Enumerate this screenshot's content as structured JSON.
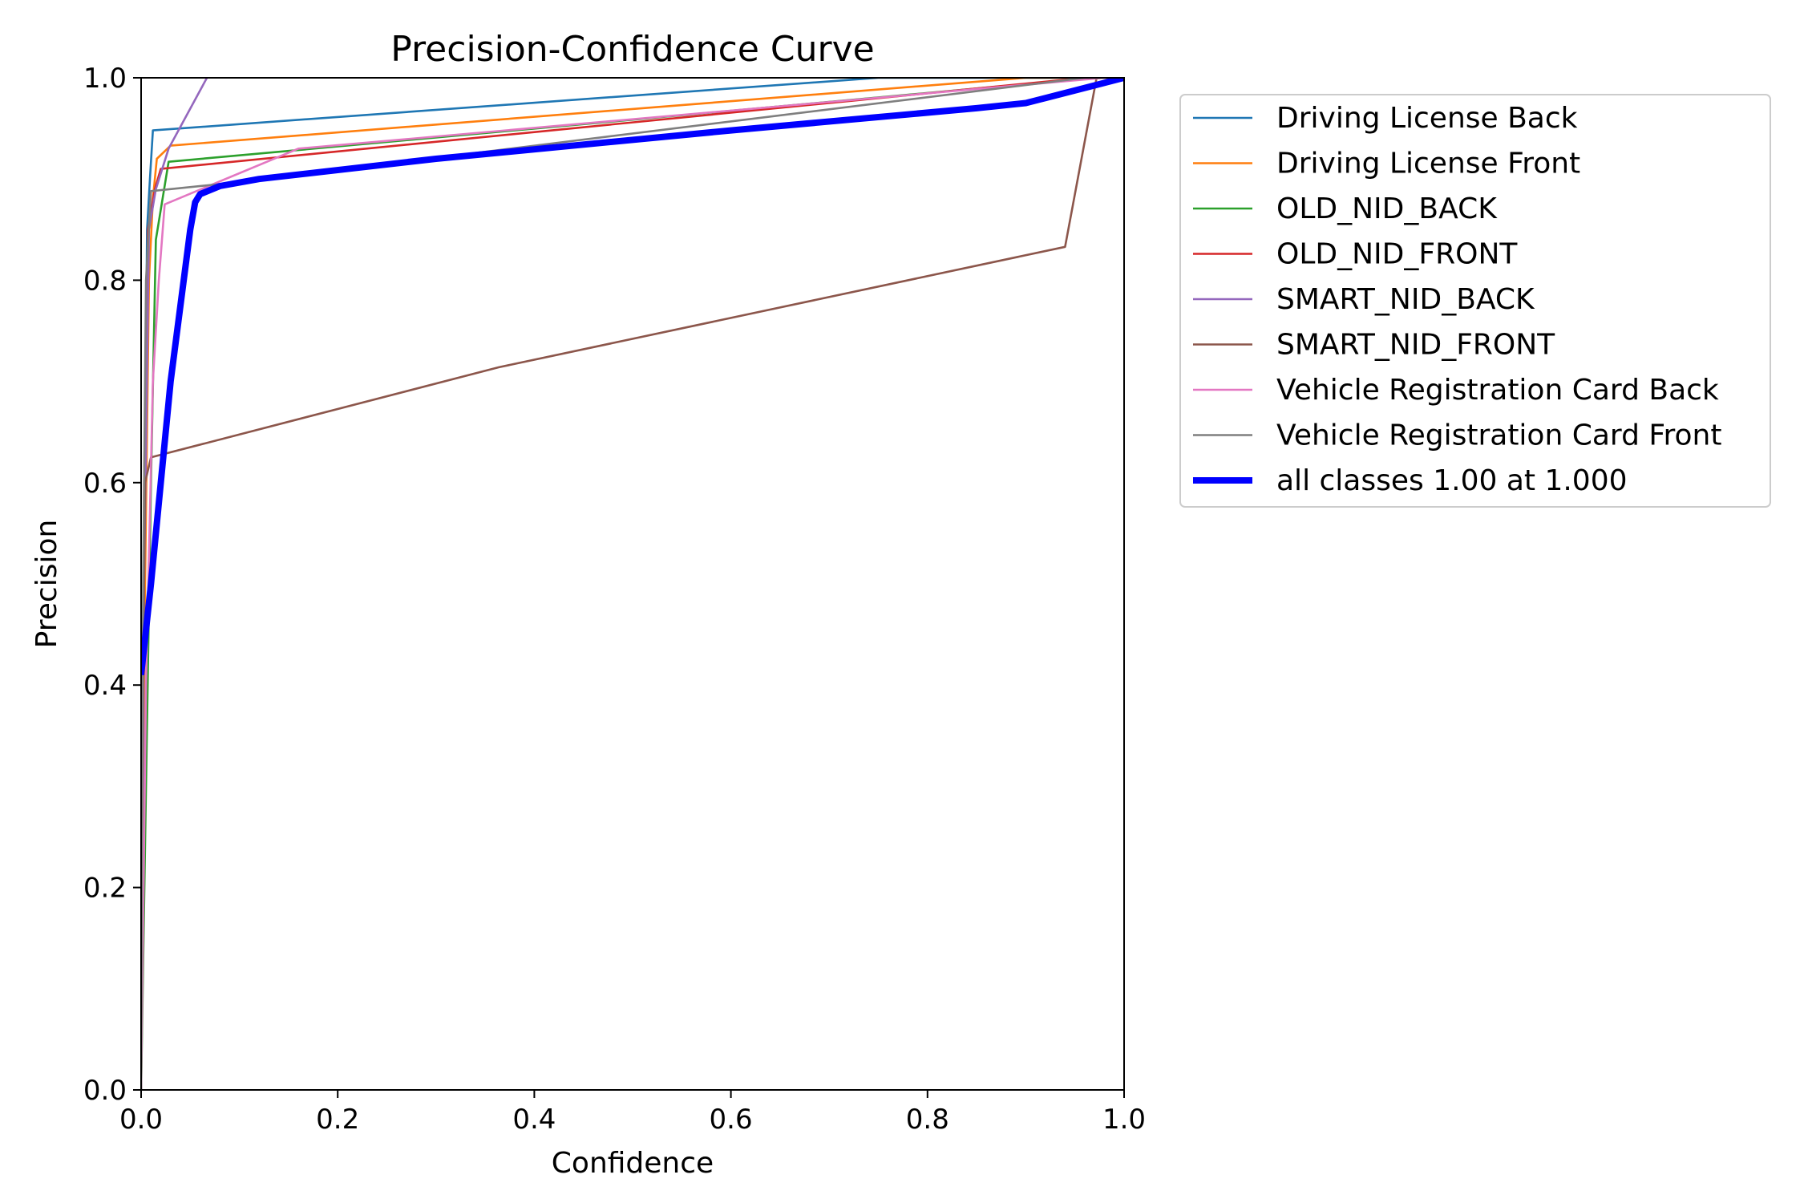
{
  "chart_data": {
    "type": "line",
    "title": "Precision-Confidence Curve",
    "xlabel": "Confidence",
    "ylabel": "Precision",
    "xlim": [
      0,
      1
    ],
    "ylim": [
      0,
      1
    ],
    "xticks": [
      "0.0",
      "0.2",
      "0.4",
      "0.6",
      "0.8",
      "1.0"
    ],
    "yticks": [
      "0.0",
      "0.2",
      "0.4",
      "0.6",
      "0.8",
      "1.0"
    ],
    "grid": false,
    "legend_position": "outside-top-right",
    "series": [
      {
        "name": "Driving License Back",
        "color": "#1f77b4",
        "width": "thin",
        "points": [
          [
            0.0,
            0.0
          ],
          [
            0.003,
            0.5
          ],
          [
            0.006,
            0.85
          ],
          [
            0.009,
            0.9
          ],
          [
            0.012,
            0.948
          ],
          [
            0.75,
            1.0
          ],
          [
            1.0,
            1.0
          ]
        ]
      },
      {
        "name": "Driving License Front",
        "color": "#ff7f0e",
        "width": "thin",
        "points": [
          [
            0.0,
            0.0
          ],
          [
            0.004,
            0.5
          ],
          [
            0.008,
            0.8
          ],
          [
            0.012,
            0.88
          ],
          [
            0.016,
            0.92
          ],
          [
            0.03,
            0.933
          ],
          [
            0.9,
            1.0
          ],
          [
            1.0,
            1.0
          ]
        ]
      },
      {
        "name": "OLD_NID_BACK",
        "color": "#2ca02c",
        "width": "thin",
        "points": [
          [
            0.0,
            0.0
          ],
          [
            0.005,
            0.3
          ],
          [
            0.01,
            0.6
          ],
          [
            0.015,
            0.84
          ],
          [
            0.028,
            0.917
          ],
          [
            0.97,
            1.0
          ],
          [
            1.0,
            1.0
          ]
        ]
      },
      {
        "name": "OLD_NID_FRONT",
        "color": "#d62728",
        "width": "thin",
        "points": [
          [
            0.0,
            0.0
          ],
          [
            0.003,
            0.6
          ],
          [
            0.007,
            0.85
          ],
          [
            0.014,
            0.89
          ],
          [
            0.02,
            0.91
          ],
          [
            0.96,
            1.0
          ],
          [
            1.0,
            1.0
          ]
        ]
      },
      {
        "name": "SMART_NID_BACK",
        "color": "#9467bd",
        "width": "thin",
        "points": [
          [
            0.0,
            0.0
          ],
          [
            0.003,
            0.5
          ],
          [
            0.008,
            0.85
          ],
          [
            0.015,
            0.89
          ],
          [
            0.028,
            0.93
          ],
          [
            0.067,
            1.0
          ]
        ]
      },
      {
        "name": "SMART_NID_FRONT",
        "color": "#8c564b",
        "width": "thin",
        "points": [
          [
            0.0,
            0.0
          ],
          [
            0.002,
            0.4
          ],
          [
            0.004,
            0.6
          ],
          [
            0.01,
            0.625
          ],
          [
            0.364,
            0.714
          ],
          [
            0.94,
            0.833
          ],
          [
            0.972,
            1.0
          ],
          [
            1.0,
            1.0
          ]
        ]
      },
      {
        "name": "Vehicle Registration Card Back",
        "color": "#e377c2",
        "width": "thin",
        "points": [
          [
            0.0,
            0.0
          ],
          [
            0.005,
            0.4
          ],
          [
            0.012,
            0.7
          ],
          [
            0.018,
            0.8
          ],
          [
            0.024,
            0.875
          ],
          [
            0.16,
            0.93
          ],
          [
            0.98,
            1.0
          ],
          [
            1.0,
            1.0
          ]
        ]
      },
      {
        "name": "Vehicle Registration Card Front",
        "color": "#7f7f7f",
        "width": "thin",
        "points": [
          [
            0.0,
            0.0
          ],
          [
            0.002,
            0.5
          ],
          [
            0.005,
            0.8
          ],
          [
            0.01,
            0.888
          ],
          [
            0.1,
            0.897
          ],
          [
            0.96,
            1.0
          ],
          [
            1.0,
            1.0
          ]
        ]
      },
      {
        "name": "all classes 1.00 at 1.000",
        "color": "#0000ff",
        "width": "thick",
        "points": [
          [
            0.0,
            0.41
          ],
          [
            0.01,
            0.5
          ],
          [
            0.03,
            0.7
          ],
          [
            0.05,
            0.85
          ],
          [
            0.055,
            0.877
          ],
          [
            0.06,
            0.885
          ],
          [
            0.08,
            0.893
          ],
          [
            0.12,
            0.9
          ],
          [
            0.3,
            0.92
          ],
          [
            0.6,
            0.948
          ],
          [
            0.85,
            0.97
          ],
          [
            0.9,
            0.975
          ],
          [
            0.92,
            0.98
          ],
          [
            0.96,
            0.99
          ],
          [
            1.0,
            1.0
          ]
        ]
      }
    ]
  }
}
